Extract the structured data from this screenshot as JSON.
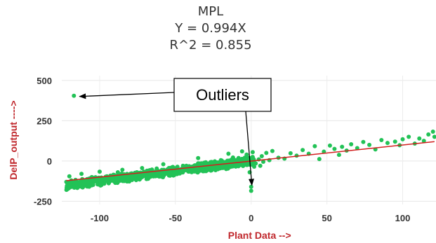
{
  "chart_data": {
    "type": "scatter",
    "title_lines": [
      "MPL",
      "Y = 0.994X",
      "R^2 = 0.855"
    ],
    "xlabel": "Plant Data -->",
    "ylabel": "DelP_output ---->",
    "xlim": [
      -125,
      122
    ],
    "ylim": [
      -270,
      530
    ],
    "xticks": [
      -100,
      -50,
      0,
      50,
      100
    ],
    "yticks": [
      -250,
      0,
      250,
      500
    ],
    "grid": true,
    "point_color": "#22c256",
    "fit": {
      "slope": 0.994,
      "intercept": 0,
      "color": "#d21e1e"
    },
    "annotation": {
      "text": "Outliers",
      "points": [
        [
          -117,
          405
        ],
        [
          0,
          -185
        ]
      ]
    },
    "points": [
      [
        -117,
        405
      ],
      [
        0,
        -185
      ],
      [
        0,
        -160
      ],
      [
        -2,
        8
      ],
      [
        3,
        -15
      ],
      [
        1,
        25
      ],
      [
        -3,
        40
      ],
      [
        2,
        -35
      ],
      [
        5,
        10
      ],
      [
        -4,
        -20
      ],
      [
        1,
        55
      ],
      [
        -1,
        -70
      ],
      [
        -6,
        60
      ],
      [
        -8,
        2
      ],
      [
        7,
        30
      ],
      [
        10,
        50
      ],
      [
        14,
        62
      ],
      [
        18,
        20
      ],
      [
        22,
        15
      ],
      [
        26,
        48
      ],
      [
        30,
        33
      ],
      [
        34,
        68
      ],
      [
        38,
        45
      ],
      [
        42,
        92
      ],
      [
        45,
        12
      ],
      [
        48,
        58
      ],
      [
        52,
        96
      ],
      [
        55,
        75
      ],
      [
        58,
        38
      ],
      [
        60,
        88
      ],
      [
        63,
        65
      ],
      [
        66,
        104
      ],
      [
        70,
        80
      ],
      [
        74,
        118
      ],
      [
        78,
        100
      ],
      [
        82,
        72
      ],
      [
        86,
        130
      ],
      [
        90,
        112
      ],
      [
        95,
        120
      ],
      [
        98,
        98
      ],
      [
        100,
        135
      ],
      [
        104,
        150
      ],
      [
        108,
        108
      ],
      [
        111,
        140
      ],
      [
        114,
        125
      ],
      [
        117,
        165
      ],
      [
        120,
        182
      ],
      [
        121,
        150
      ],
      [
        -20,
        5
      ],
      [
        -15,
        45
      ],
      [
        -10,
        -5
      ],
      [
        -12,
        22
      ],
      [
        -26,
        -45
      ],
      [
        -35,
        18
      ],
      [
        -45,
        -30
      ],
      [
        -58,
        -20
      ],
      [
        -68,
        -110
      ],
      [
        -72,
        -44
      ],
      [
        -85,
        -55
      ],
      [
        -95,
        -125
      ],
      [
        -100,
        -66
      ],
      [
        -108,
        -135
      ],
      [
        -112,
        -80
      ],
      [
        -120,
        -95
      ],
      [
        -122,
        -130
      ],
      [
        -88,
        -70
      ],
      [
        -78,
        -105
      ],
      [
        -50,
        -75
      ],
      [
        -40,
        -60
      ],
      [
        -30,
        -8
      ],
      [
        -24,
        -2
      ],
      [
        8,
        -5
      ],
      [
        12,
        5
      ],
      [
        6,
        -30
      ]
    ]
  }
}
